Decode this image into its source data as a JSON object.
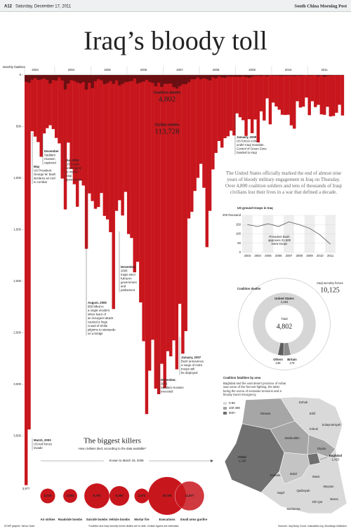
{
  "header": {
    "page": "A12",
    "date": "Saturday, December 17, 2011",
    "paper": "South China Morning Post"
  },
  "title": "Iraq’s bloody toll",
  "intro": "The United States officially marked the end of almost nine years of bloody military engagement in Iraq on Thursday. Over 4,800 coalition soldiers and tens of thousands of Iraqi civilians lost their lives in a war that defined a decade.",
  "chart_data": [
    {
      "type": "bar",
      "y_label": "Monthly fatalities",
      "categories": [
        null,
        null,
        null,
        "2003",
        null,
        null,
        null,
        null,
        null,
        null,
        null,
        null,
        null,
        null,
        null,
        "2004",
        null,
        null,
        null,
        null,
        null,
        null,
        null,
        null,
        null,
        null,
        null,
        "2005",
        null,
        null,
        null,
        null,
        null,
        null,
        null,
        null,
        null,
        null,
        null,
        "2006",
        null,
        null,
        null,
        null,
        null,
        null,
        null,
        null,
        null,
        null,
        null,
        "2007",
        null,
        null,
        null,
        null,
        null,
        null,
        null,
        null,
        null,
        null,
        null,
        "2008",
        null,
        null,
        null,
        null,
        null,
        null,
        null,
        null,
        null,
        null,
        null,
        "2009",
        null,
        null,
        null,
        null,
        null,
        null,
        null,
        null,
        null,
        null,
        null,
        "2010",
        null,
        null,
        null,
        null,
        null,
        null,
        null,
        null,
        null,
        null,
        null,
        "2011",
        null,
        null,
        null,
        null,
        null,
        null
      ],
      "ylim": [
        0,
        4000
      ],
      "yticks": [
        0,
        500,
        {
          "value": 1000,
          "label": "1,000"
        },
        {
          "value": 1500,
          "label": "1,500"
        },
        {
          "value": 2000,
          "label": "2,000"
        },
        {
          "value": 2500,
          "label": "2,500"
        },
        {
          "value": 3000,
          "label": "3,000"
        },
        {
          "value": 3500,
          "label": "3,500"
        }
      ],
      "series": [
        {
          "name": "Civilian deaths",
          "total": "113,728",
          "color": "#c8161d",
          "values": [
            3977,
            3437,
            545,
            597,
            650,
            792,
            566,
            515,
            487,
            524,
            610,
            663,
            1004,
            1303,
            655,
            910,
            1059,
            1277,
            1022,
            1071,
            1685,
            1148,
            1222,
            1297,
            1280,
            1144,
            1366,
            1400,
            1524,
            2269,
            1317,
            1214,
            1362,
            1133,
            1542,
            1580,
            1913,
            1811,
            2205,
            2581,
            3288,
            2867,
            2567,
            3041,
            3095,
            2800,
            3035,
            2678,
            2728,
            2573,
            2854,
            2219,
            2702,
            2483,
            1391,
            1326,
            1124,
            997,
            861,
            1093,
            1669,
            1317,
            915,
            755,
            640,
            704,
            612,
            594,
            540,
            586,
            372,
            409,
            438,
            590,
            428,
            564,
            431,
            653,
            352,
            441,
            226,
            478,
            267,
            305,
            336,
            385,
            387,
            385,
            488,
            520,
            254,
            315,
            307,
            218,
            389,
            254,
            311,
            289,
            381,
            386,
            308,
            401,
            397,
            366,
            288,
            392
          ],
          "value_labels": [
            "3,977",
            null,
            null,
            null,
            null,
            null,
            null,
            null,
            null,
            null,
            null,
            null,
            null,
            null,
            null,
            null,
            null,
            null,
            null,
            null,
            null,
            null,
            null,
            null,
            null,
            null,
            null,
            null,
            null,
            null,
            null,
            null,
            null,
            null,
            null,
            null,
            null,
            null,
            null,
            null,
            null,
            null,
            null,
            null,
            null,
            null,
            null,
            null,
            null,
            null,
            null,
            null,
            null,
            null,
            null,
            null,
            null,
            null,
            null,
            null,
            null,
            null,
            null,
            null,
            null,
            null,
            null,
            null,
            null,
            null,
            null,
            null,
            null,
            null,
            null,
            null,
            null,
            null,
            null,
            null,
            null,
            null,
            null,
            null,
            null,
            null,
            null,
            null,
            null,
            null,
            null,
            null,
            null,
            null,
            null,
            null,
            null,
            null,
            null,
            null,
            null,
            null,
            null,
            null,
            null,
            null
          ]
        },
        {
          "name": "Coalition deaths",
          "total": "4,802",
          "color": "#6b0f12",
          "values": [
            65,
            74,
            45,
            30,
            48,
            43,
            33,
            47,
            82,
            48,
            53,
            23,
            52,
            140,
            82,
            49,
            57,
            71,
            82,
            68,
            141,
            75,
            127,
            60,
            39,
            52,
            88,
            78,
            58,
            85,
            52,
            100,
            86,
            68,
            64,
            58,
            33,
            82,
            72,
            63,
            46,
            66,
            76,
            108,
            73,
            115,
            86,
            85,
            82,
            117,
            131,
            108,
            88,
            88,
            69,
            40,
            40,
            23,
            40,
            30,
            40,
            52,
            21,
            31,
            14,
            23,
            27,
            14,
            17,
            16,
            16,
            18,
            12,
            19,
            25,
            15,
            8,
            7,
            10,
            4,
            11,
            3,
            6,
            5,
            7,
            9,
            6,
            7,
            6,
            9,
            5,
            7,
            3,
            2,
            6,
            4,
            2,
            11,
            3,
            15,
            6,
            4,
            1,
            3,
            2,
            1
          ]
        }
      ],
      "annotations": [
        {
          "lines": [
            "March, 2003",
            "US-led forces",
            "invade"
          ]
        },
        {
          "lines": [
            "May",
            "US President",
            "George W. Bush",
            "declares an end",
            "to combat"
          ]
        },
        {
          "lines": [
            "December",
            "Saddam",
            "Hussein",
            "captured"
          ]
        },
        {
          "lines": [
            "Jun 2004",
            "US hands",
            "sovereignty",
            "to interim",
            "Iraqi",
            "government"
          ]
        },
        {
          "lines": [
            "August, 2005",
            "950 killed in",
            "a single incident",
            "when fears of",
            "an insurgent attack",
            "caused a huge",
            "crowd of Shiite",
            "pilgrims to stampede",
            "on a bridge"
          ]
        },
        {
          "lines": [
            "December,",
            "2005",
            "Iraqis elect",
            "full-term",
            "government",
            "and",
            "parliament"
          ]
        },
        {
          "lines": [
            "January, 2007",
            "Bush announces",
            "a surge of extra",
            "troops will",
            "be deployed"
          ]
        },
        {
          "lines": [
            "December,",
            "2006",
            "Saddam Hussein",
            "executed"
          ]
        },
        {
          "lines": [
            "January, 2009",
            "US forces come",
            "under Iraqi mandate.",
            "Control of Green Zone",
            "handed to Iraqi"
          ]
        }
      ]
    },
    {
      "type": "line",
      "title": "US ground troops in Iraq",
      "color": "#555555",
      "categories": [
        "2003",
        "2004",
        "2005",
        "2006",
        "2007",
        "2008",
        "2009",
        "2010",
        "2011"
      ],
      "values": [
        150,
        140,
        155,
        140,
        165,
        150,
        130,
        95,
        45
      ],
      "ylim": [
        0,
        200
      ],
      "yticks": [
        0,
        50,
        100,
        150,
        {
          "value": 200,
          "label": "200 thousand"
        }
      ],
      "annotation": [
        "President Bush",
        "approves 21,500",
        "extra troops"
      ]
    },
    {
      "type": "pie",
      "title": "Coalition deaths",
      "categories": [
        "United States",
        "Britain",
        "Others"
      ],
      "values": [
        4484,
        179,
        139
      ],
      "value_labels": [
        "4,484",
        "179",
        "139"
      ],
      "colors": [
        "#d6d6d6",
        "#8c8c8c",
        "#5c5c5c"
      ],
      "total_label": "Total",
      "total": 4802,
      "total_value_label": "4,802",
      "comparison": {
        "name": "Iraqi security forces",
        "value": 10125,
        "value_label": "10,125"
      }
    },
    {
      "type": "bubble",
      "title": "The biggest killers",
      "subtitle": "How civilians died, according to the data available*",
      "period": "Known to March 19, 2008",
      "color": "#c8161d",
      "categories": [
        "Air strikes",
        "Roadside bombs",
        "Suicide bombs",
        "Vehicle bombs",
        "Mortar fire",
        "Executions",
        "Small arms gunfire"
      ],
      "values": [
        3010,
        2654,
        8700,
        5360,
        2974,
        19766,
        11877
      ],
      "value_labels": [
        "3,010",
        "2,654",
        "8,700",
        "5,360",
        "2,974",
        "19,766",
        "11,877"
      ]
    }
  ],
  "map": {
    "title": "Coalition fatalities by area",
    "subtitle": "Baghdad and the vast desert province of Anbar saw some of the fiercest fighting, the latter being the scene of sectarian tensions and a bloody Sunni insurgency",
    "legend": [
      "0-99",
      "100-499",
      "500+"
    ],
    "regions": [
      {
        "name": "Dohuk"
      },
      {
        "name": "Erbil"
      },
      {
        "name": "Ninawa"
      },
      {
        "name": "Kirkuk"
      },
      {
        "name": "Sulaymaniyah"
      },
      {
        "name": "Salahuddin"
      },
      {
        "name": "Diyala"
      },
      {
        "name": "Anbar",
        "value": "1,338"
      },
      {
        "name": "Baghdad",
        "value": "1,423"
      },
      {
        "name": "Karbala"
      },
      {
        "name": "Babil"
      },
      {
        "name": "Wasit"
      },
      {
        "name": "Najaf"
      },
      {
        "name": "Qadisiyah"
      },
      {
        "name": "Maysan"
      },
      {
        "name": "Dhi Qar"
      },
      {
        "name": "Muthanna"
      },
      {
        "name": "Basra"
      }
    ]
  },
  "footer": {
    "credit": "SCMP graphic: Simon Scarr",
    "note": "*Coalition and Iraqi security forces deaths are to date. Civilian figures are estimates",
    "sources": "Sources: Iraq Body Count, icasualties.org, Brookings Institution"
  }
}
